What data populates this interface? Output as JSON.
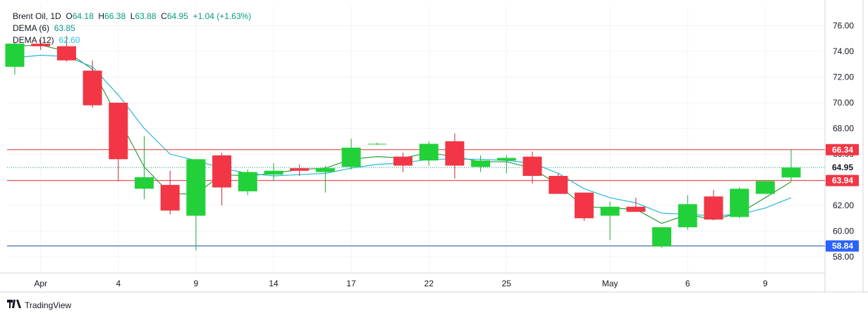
{
  "legend": {
    "symbol": "Brent Oil",
    "interval": "1D",
    "open_label": "O",
    "open": "64.18",
    "high_label": "H",
    "high": "66.38",
    "low_label": "L",
    "low": "63.88",
    "close_label": "C",
    "close": "64.95",
    "change": "+1.04 (+1.63%)",
    "dema6_label": "DEMA (6)",
    "dema6_value": "63.85",
    "dema12_label": "DEMA (12)",
    "dema12_value": "62.60"
  },
  "brand": {
    "name": "TradingView"
  },
  "colors": {
    "up": "#22d13a",
    "down": "#f23645",
    "dema6": "#2e9e3f",
    "dema12": "#29b6d6",
    "hline_red": "#e53935",
    "hline_blue": "#1e4fa0",
    "last_price_green": "#089981",
    "label_red": "#f23645",
    "label_blue": "#2962ff"
  },
  "chart_data": {
    "type": "candlestick",
    "yaxis": {
      "min": 57.0,
      "max": 77.0,
      "ticks": [
        58,
        60,
        62,
        64,
        66,
        68,
        70,
        72,
        74,
        76
      ],
      "tick_labels": [
        "58.00",
        "60.00",
        "62.00",
        "64.00",
        "66.00",
        "68.00",
        "70.00",
        "72.00",
        "74.00",
        "76.00"
      ],
      "position": "right"
    },
    "xaxis": {
      "labels": [
        {
          "label": "Apr",
          "index": 1
        },
        {
          "label": "4",
          "index": 4
        },
        {
          "label": "9",
          "index": 7
        },
        {
          "label": "14",
          "index": 10
        },
        {
          "label": "17",
          "index": 13
        },
        {
          "label": "22",
          "index": 16
        },
        {
          "label": "25",
          "index": 19
        },
        {
          "label": "May",
          "index": 23
        },
        {
          "label": "6",
          "index": 26
        },
        {
          "label": "9",
          "index": 29
        }
      ]
    },
    "candles": [
      {
        "o": 72.8,
        "h": 74.7,
        "l": 72.2,
        "c": 74.6
      },
      {
        "o": 74.6,
        "h": 74.9,
        "l": 74.1,
        "c": 74.4
      },
      {
        "o": 74.4,
        "h": 75.2,
        "l": 73.2,
        "c": 73.3
      },
      {
        "o": 72.5,
        "h": 73.3,
        "l": 69.6,
        "c": 69.8
      },
      {
        "o": 70.0,
        "h": 70.0,
        "l": 63.9,
        "c": 65.6
      },
      {
        "o": 63.3,
        "h": 67.4,
        "l": 62.5,
        "c": 64.2
      },
      {
        "o": 63.6,
        "h": 64.7,
        "l": 61.3,
        "c": 61.6
      },
      {
        "o": 61.2,
        "h": 65.5,
        "l": 58.5,
        "c": 65.6
      },
      {
        "o": 65.9,
        "h": 66.1,
        "l": 62.0,
        "c": 63.4
      },
      {
        "o": 63.1,
        "h": 64.8,
        "l": 62.8,
        "c": 64.6
      },
      {
        "o": 64.4,
        "h": 65.3,
        "l": 63.9,
        "c": 64.7
      },
      {
        "o": 64.9,
        "h": 65.2,
        "l": 64.3,
        "c": 64.7
      },
      {
        "o": 64.6,
        "h": 65.1,
        "l": 63.0,
        "c": 64.9
      },
      {
        "o": 65.0,
        "h": 67.2,
        "l": 64.8,
        "c": 66.5
      },
      {
        "o": 66.8,
        "h": 66.9,
        "l": 66.7,
        "c": 66.8
      },
      {
        "o": 65.8,
        "h": 66.1,
        "l": 64.6,
        "c": 65.1
      },
      {
        "o": 65.5,
        "h": 67.0,
        "l": 65.1,
        "c": 66.8
      },
      {
        "o": 67.0,
        "h": 67.6,
        "l": 64.1,
        "c": 65.1
      },
      {
        "o": 65.0,
        "h": 65.9,
        "l": 64.6,
        "c": 65.5
      },
      {
        "o": 65.5,
        "h": 65.9,
        "l": 64.5,
        "c": 65.7
      },
      {
        "o": 65.8,
        "h": 66.2,
        "l": 63.7,
        "c": 64.3
      },
      {
        "o": 64.3,
        "h": 64.5,
        "l": 62.9,
        "c": 62.9
      },
      {
        "o": 63.0,
        "h": 63.0,
        "l": 60.8,
        "c": 61.0
      },
      {
        "o": 61.2,
        "h": 62.3,
        "l": 59.3,
        "c": 61.9
      },
      {
        "o": 61.9,
        "h": 62.6,
        "l": 61.5,
        "c": 61.5
      },
      {
        "o": 58.8,
        "h": 60.3,
        "l": 58.7,
        "c": 60.3
      },
      {
        "o": 60.3,
        "h": 62.8,
        "l": 60.1,
        "c": 62.1
      },
      {
        "o": 62.7,
        "h": 63.2,
        "l": 60.9,
        "c": 60.9
      },
      {
        "o": 61.1,
        "h": 63.4,
        "l": 61.0,
        "c": 63.3
      },
      {
        "o": 62.9,
        "h": 63.9,
        "l": 62.9,
        "c": 63.9
      },
      {
        "o": 64.18,
        "h": 66.38,
        "l": 63.88,
        "c": 64.95
      }
    ],
    "series": [
      {
        "name": "DEMA (6)",
        "values": [
          74.4,
          74.5,
          74.0,
          72.6,
          68.8,
          65.0,
          62.9,
          62.9,
          64.4,
          64.3,
          64.5,
          64.8,
          64.9,
          65.6,
          65.8,
          65.7,
          66.1,
          65.8,
          65.4,
          65.4,
          64.9,
          63.6,
          61.9,
          61.8,
          61.7,
          60.6,
          61.3,
          60.9,
          61.4,
          62.6,
          63.85
        ]
      },
      {
        "name": "DEMA (12)",
        "values": [
          73.5,
          73.7,
          73.6,
          72.8,
          70.6,
          68.0,
          66.0,
          65.5,
          64.9,
          64.5,
          64.3,
          64.4,
          64.5,
          64.9,
          65.2,
          65.3,
          65.6,
          65.6,
          65.6,
          65.5,
          65.3,
          64.5,
          63.3,
          62.6,
          62.2,
          61.4,
          61.3,
          61.2,
          61.3,
          61.8,
          62.6
        ]
      }
    ],
    "hlines": [
      {
        "value": 66.34,
        "label": "66.34",
        "kind": "red"
      },
      {
        "value": 63.94,
        "label": "63.94",
        "kind": "red"
      },
      {
        "value": 58.84,
        "label": "58.84",
        "kind": "blue"
      }
    ],
    "last_price": {
      "value": 64.95,
      "label": "64.95"
    },
    "grid": true
  }
}
